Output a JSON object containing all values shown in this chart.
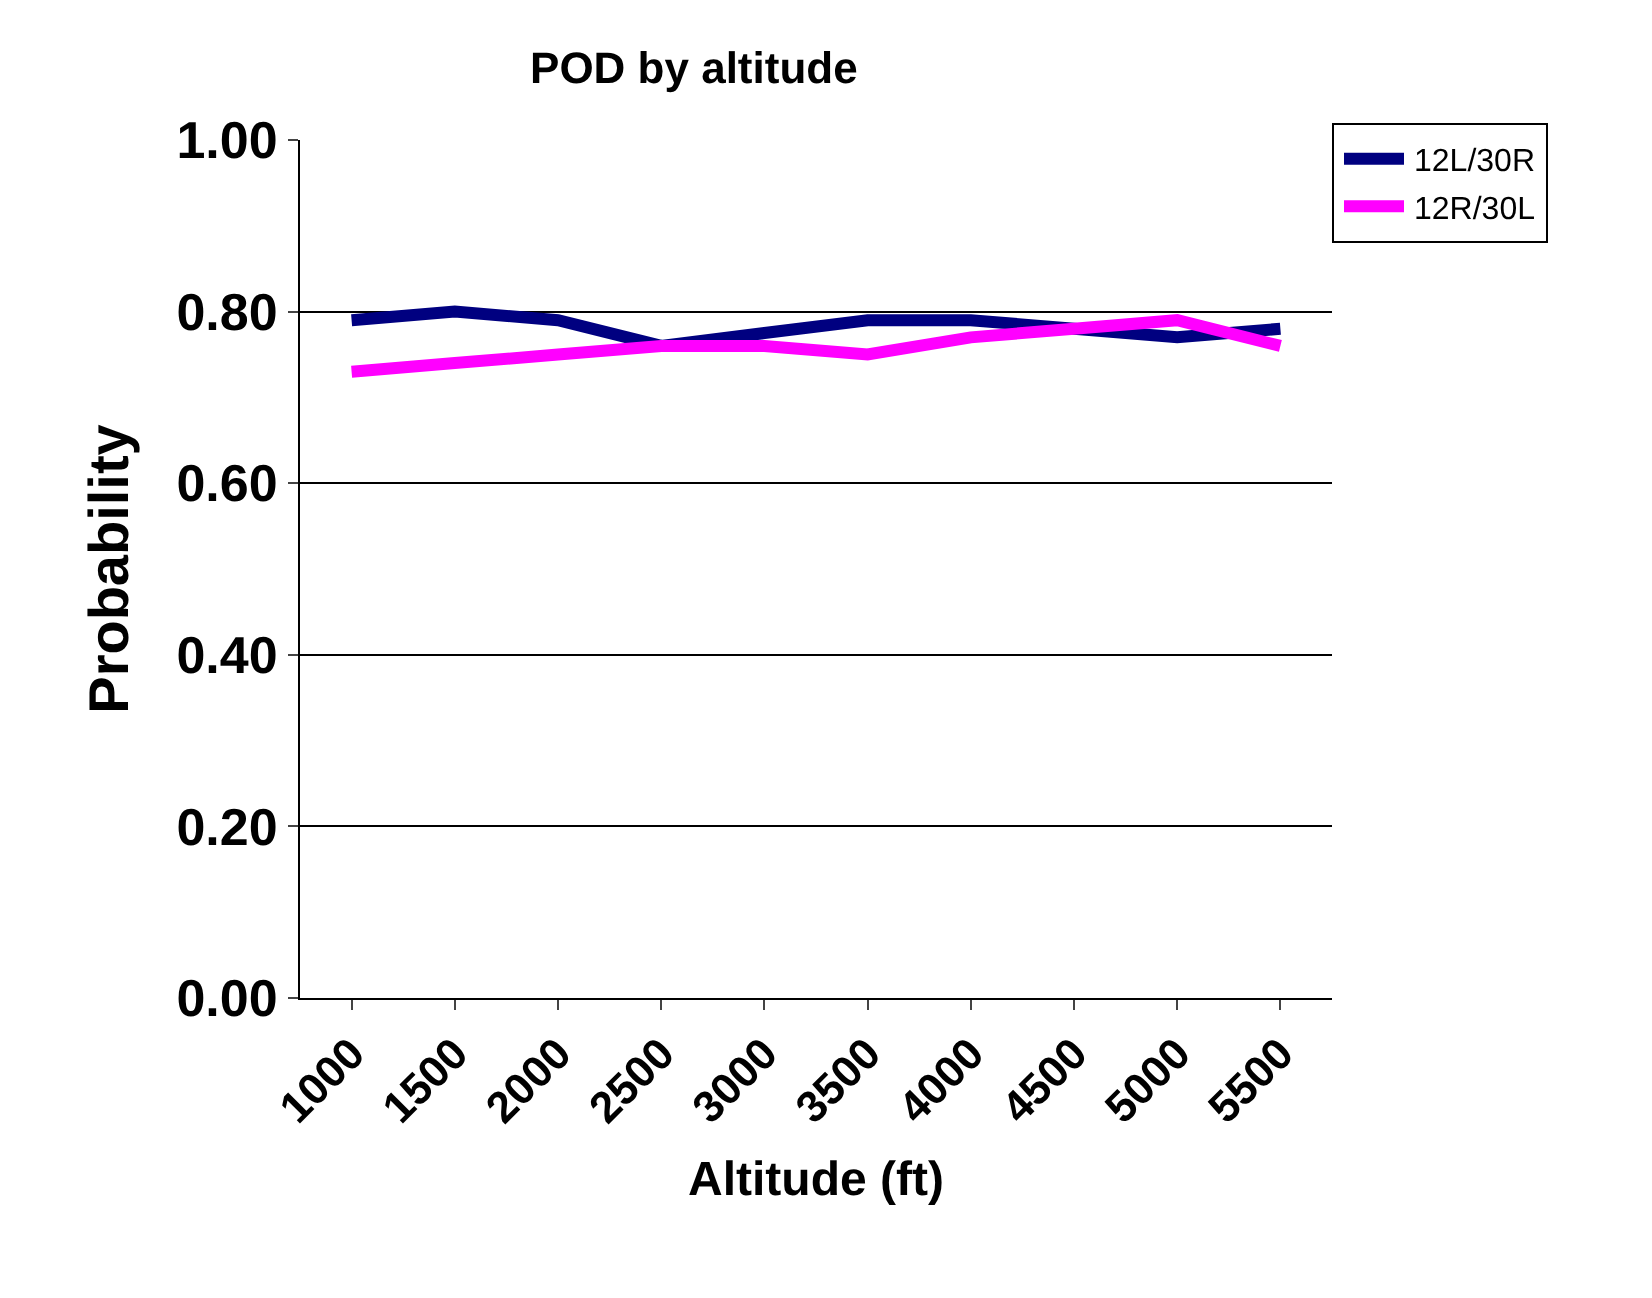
{
  "chart_data": {
    "type": "line",
    "title": "POD by altitude",
    "xlabel": "Altitude (ft)",
    "ylabel": "Probability",
    "categories": [
      "1000",
      "1500",
      "2000",
      "2500",
      "3000",
      "3500",
      "4000",
      "4500",
      "5000",
      "5500"
    ],
    "series": [
      {
        "name": "12L/30R",
        "color": "#000080",
        "values": [
          0.79,
          0.8,
          0.79,
          0.76,
          0.775,
          0.79,
          0.79,
          0.78,
          0.77,
          0.78
        ]
      },
      {
        "name": "12R/30L",
        "color": "#ff00ff",
        "values": [
          0.73,
          0.74,
          0.75,
          0.76,
          0.76,
          0.75,
          0.77,
          0.78,
          0.79,
          0.76
        ]
      }
    ],
    "ylim": [
      0,
      1
    ],
    "yticks": [
      {
        "value": 0,
        "label": "0.00"
      },
      {
        "value": 0.2,
        "label": "0.20"
      },
      {
        "value": 0.4,
        "label": "0.40"
      },
      {
        "value": 0.6,
        "label": "0.60"
      },
      {
        "value": 0.8,
        "label": "0.80"
      },
      {
        "value": 1,
        "label": "1.00"
      }
    ],
    "grid": "y",
    "legend": "top right",
    "marker": "none",
    "line_style": "solid"
  }
}
